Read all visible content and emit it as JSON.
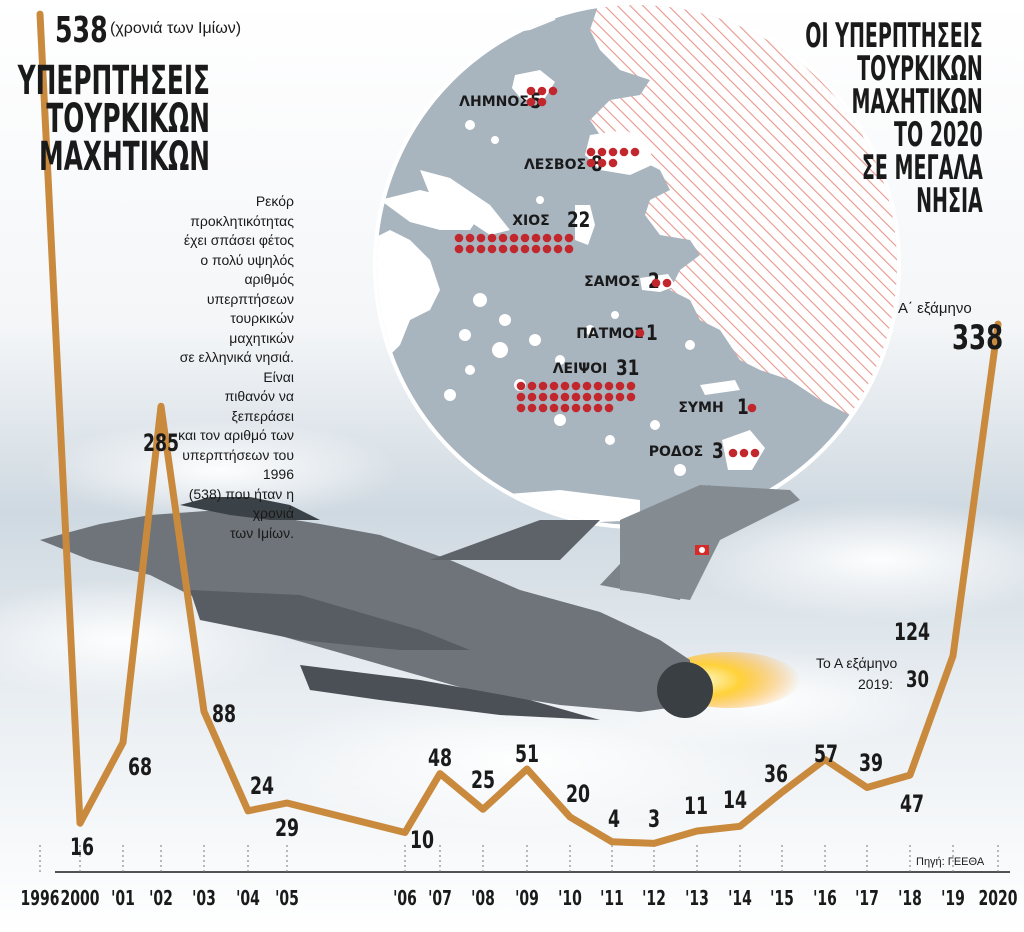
{
  "headline": "ΥΠΕΡΠΤΗΣΕΙΣ ΤΟΥΡΚΙΚΩΝ ΜΑΧΗΤΙΚΩΝ",
  "headline_lines": [
    "ΥΠΕΡΠΤΗΣΕΙΣ",
    "ΤΟΥΡΚΙΚΩΝ",
    "ΜΑΧΗΤΙΚΩΝ"
  ],
  "intro_lines": [
    "Ρεκόρ προκλητικότητας",
    "έχει σπάσει φέτος",
    "ο πολύ υψηλός",
    "αριθμός υπερπτήσεων",
    "τουρκικών μαχητικών",
    "σε ελληνικά νησιά. Είναι",
    "πιθανόν να ξεπεράσει",
    "και τον αριθμό των",
    "υπερπτήσεων του 1996",
    "(538) που ήταν η χρονιά",
    "των Ιμίων."
  ],
  "peak_note": "(χρονιά των Ιμίων)",
  "half_2020_note": "Α΄ εξάμηνο",
  "note_2019_line1": "Το Α εξάμηνο",
  "note_2019_line2": "2019:",
  "note_2019_value": "30",
  "source": "Πηγή: ΓΕΕΘΑ",
  "map": {
    "title_lines": [
      "ΟΙ ΥΠΕΡΠΤΗΣΕΙΣ",
      "ΤΟΥΡΚΙΚΩΝ",
      "ΜΑΧΗΤΙΚΩΝ",
      "ΤΟ 2020",
      "ΣΕ ΜΕΓΑΛΑ",
      "ΝΗΣΙΑ"
    ],
    "islands": [
      {
        "name": "ΛΗΜΝΟΣ",
        "count": 5
      },
      {
        "name": "ΛΕΣΒΟΣ",
        "count": 8
      },
      {
        "name": "ΧΙΟΣ",
        "count": 22
      },
      {
        "name": "ΣΑΜΟΣ",
        "count": 2
      },
      {
        "name": "ΠΑΤΜΟΣ",
        "count": 1
      },
      {
        "name": "ΛΕΙΨΟΙ",
        "count": 31
      },
      {
        "name": "ΣΥΜΗ",
        "count": 1
      },
      {
        "name": "ΡΟΔΟΣ",
        "count": 3
      }
    ]
  },
  "chart_data": {
    "type": "line",
    "title": "ΥΠΕΡΠΤΗΣΕΙΣ ΤΟΥΡΚΙΚΩΝ ΜΑΧΗΤΙΚΩΝ",
    "x": [
      "1996",
      "2000",
      "'01",
      "'02",
      "'03",
      "'04",
      "'05",
      "'06",
      "'07",
      "'08",
      "'09",
      "'10",
      "'11",
      "'12",
      "'13",
      "'14",
      "'15",
      "'16",
      "'17",
      "'18",
      "'19",
      "2020"
    ],
    "x_values": [
      1996,
      2000,
      2001,
      2002,
      2003,
      2004,
      2005,
      2006,
      2007,
      2008,
      2009,
      2010,
      2011,
      2012,
      2013,
      2014,
      2015,
      2016,
      2017,
      2018,
      2019,
      2020
    ],
    "values": [
      538,
      16,
      68,
      285,
      88,
      24,
      29,
      10,
      48,
      25,
      51,
      20,
      4,
      3,
      11,
      14,
      36,
      57,
      39,
      47,
      124,
      338
    ],
    "annotations": [
      {
        "x": "1996",
        "text": "(χρονιά των Ιμίων)"
      },
      {
        "x": "2020",
        "text": "Α΄ εξάμηνο"
      },
      {
        "x": "'19",
        "text": "Το Α εξάμηνο 2019: 30"
      }
    ],
    "line_color": "#c98a3e",
    "grid": false
  },
  "colors": {
    "line": "#c98a3e",
    "dot": "#c1272d",
    "sea": "#a8b4be",
    "land": "#ffffff",
    "hatch": "#e8968d"
  }
}
